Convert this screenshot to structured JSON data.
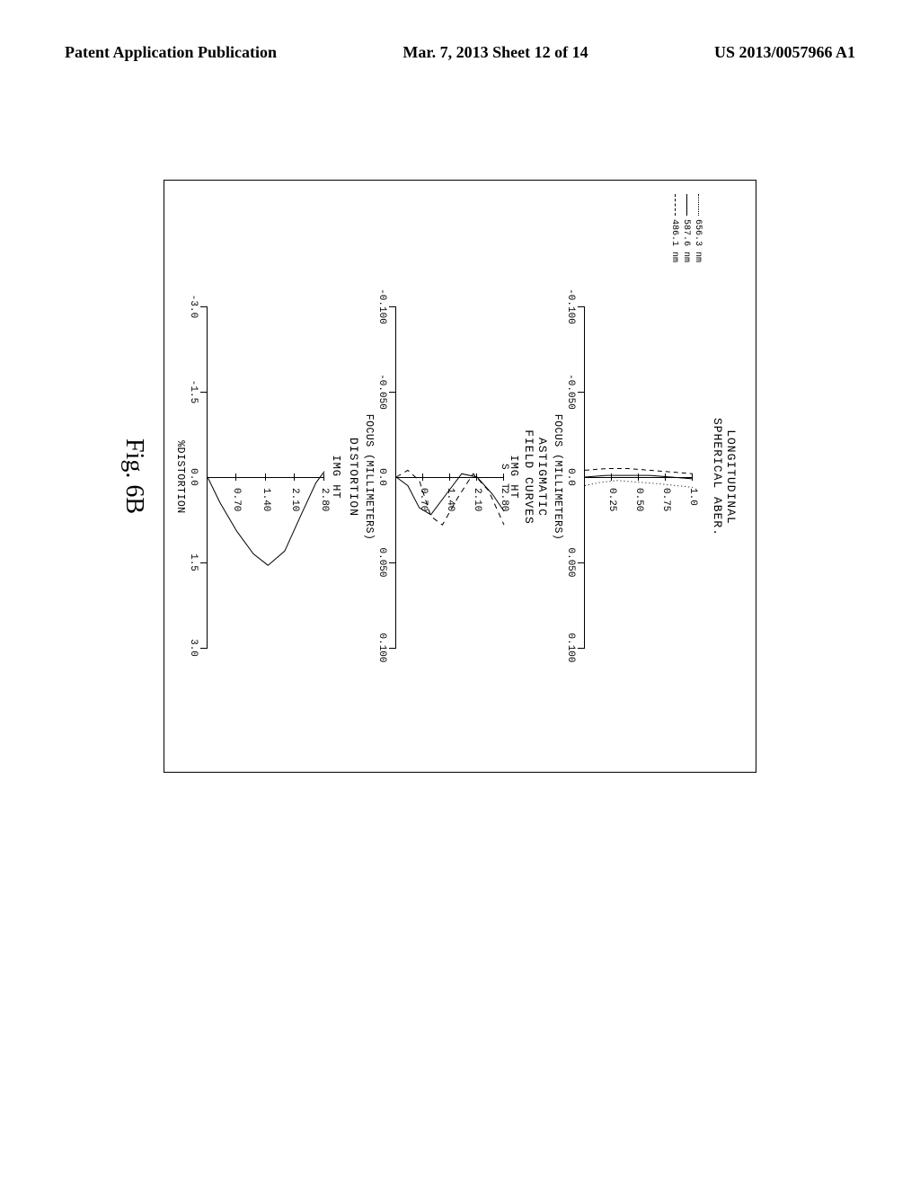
{
  "header": {
    "left": "Patent Application Publication",
    "center": "Mar. 7, 2013  Sheet 12 of 14",
    "right": "US 2013/0057966 A1"
  },
  "figure_caption": "Fig. 6B",
  "spherical": {
    "title": "LONGITUDINAL\nSPHERICAL ABER.",
    "xlabel": "FOCUS (MILLIMETERS)",
    "xticks": [
      -0.1,
      -0.05,
      0.0,
      0.05,
      0.1
    ],
    "yticks": [
      0.25,
      0.5,
      0.75,
      1.0
    ],
    "legend": [
      {
        "label": "656.3 nm",
        "style": "dotted"
      },
      {
        "label": "587.6 nm",
        "style": "solid"
      },
      {
        "label": "486.1 nm",
        "style": "dashed"
      }
    ],
    "curves": {
      "dotted": [
        [
          0.005,
          0
        ],
        [
          0.003,
          0.15
        ],
        [
          0.002,
          0.3
        ],
        [
          0.003,
          0.5
        ],
        [
          0.004,
          0.7
        ],
        [
          0.005,
          0.85
        ],
        [
          0.006,
          1.0
        ]
      ],
      "solid": [
        [
          0.0,
          0
        ],
        [
          -0.001,
          0.2
        ],
        [
          -0.001,
          0.4
        ],
        [
          -0.001,
          0.6
        ],
        [
          0.0,
          0.8
        ],
        [
          0.001,
          1.0
        ]
      ],
      "dashed": [
        [
          -0.004,
          0
        ],
        [
          -0.005,
          0.2
        ],
        [
          -0.005,
          0.4
        ],
        [
          -0.004,
          0.6
        ],
        [
          -0.003,
          0.8
        ],
        [
          -0.002,
          1.0
        ]
      ]
    },
    "xlim": [
      -0.1,
      0.1
    ],
    "ylim": [
      0,
      1.0
    ]
  },
  "astigmatic": {
    "title": "ASTIGMATIC\nFIELD CURVES",
    "subtitle": "IMG HT",
    "s_label": "S",
    "t_label": "T",
    "xlabel": "FOCUS (MILLIMETERS)",
    "xticks": [
      -0.1,
      -0.05,
      0.0,
      0.05,
      0.1
    ],
    "yticks": [
      0.7,
      1.4,
      2.1,
      2.8
    ],
    "curves": {
      "s": [
        [
          0,
          0
        ],
        [
          0.005,
          0.3
        ],
        [
          0.018,
          0.6
        ],
        [
          0.022,
          0.9
        ],
        [
          0.01,
          1.3
        ],
        [
          -0.002,
          1.7
        ],
        [
          0.0,
          2.1
        ],
        [
          0.01,
          2.5
        ],
        [
          0.02,
          2.8
        ]
      ],
      "t": [
        [
          0,
          0
        ],
        [
          -0.004,
          0.3
        ],
        [
          0.002,
          0.6
        ],
        [
          0.023,
          0.9
        ],
        [
          0.028,
          1.2
        ],
        [
          0.012,
          1.6
        ],
        [
          -0.002,
          2.0
        ],
        [
          0.008,
          2.4
        ],
        [
          0.028,
          2.8
        ]
      ]
    },
    "xlim": [
      -0.1,
      0.1
    ],
    "ylim": [
      0,
      2.8
    ]
  },
  "distortion": {
    "title": "DISTORTION",
    "subtitle": "IMG HT",
    "xlabel": "%DISTORTION",
    "xticks": [
      -3.0,
      -1.5,
      0.0,
      1.5,
      3.0
    ],
    "yticks": [
      0.7,
      1.4,
      2.1,
      2.8
    ],
    "curve": [
      [
        0,
        0
      ],
      [
        0.45,
        0.3
      ],
      [
        0.95,
        0.7
      ],
      [
        1.35,
        1.1
      ],
      [
        1.55,
        1.45
      ],
      [
        1.3,
        1.85
      ],
      [
        0.65,
        2.25
      ],
      [
        0.1,
        2.6
      ],
      [
        -0.1,
        2.8
      ]
    ],
    "xlim": [
      -3.0,
      3.0
    ],
    "ylim": [
      0,
      2.8
    ]
  },
  "colors": {
    "stroke": "#000000",
    "background": "#ffffff"
  }
}
